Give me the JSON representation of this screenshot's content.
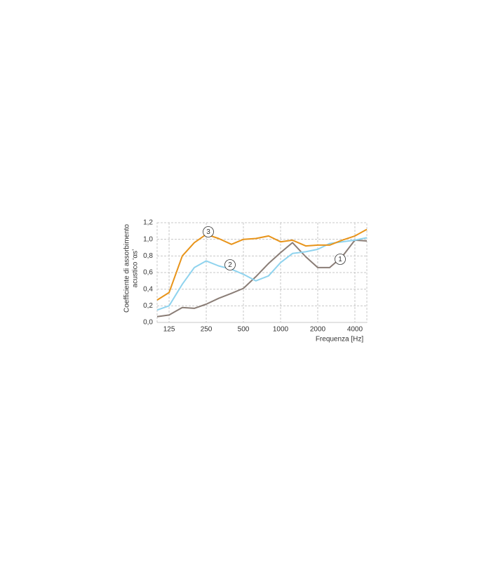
{
  "chart_data": {
    "type": "line",
    "ylabel": [
      "Coefficiente di assorbimento",
      "acustico ‘αs’"
    ],
    "xlabel": "Frequenza [Hz]",
    "x": [
      100,
      125,
      160,
      200,
      250,
      315,
      400,
      500,
      630,
      800,
      1000,
      1250,
      1600,
      2000,
      2500,
      3150,
      4000,
      5000
    ],
    "xlim": [
      100,
      5000
    ],
    "xlog": true,
    "xticks": [
      125,
      250,
      500,
      1000,
      2000,
      4000
    ],
    "ylim": [
      0,
      1.2
    ],
    "yticks": [
      {
        "value": 0,
        "label": "0,0"
      },
      {
        "value": 0.2,
        "label": "0,2"
      },
      {
        "value": 0.4,
        "label": "0,4"
      },
      {
        "value": 0.6,
        "label": "0,6"
      },
      {
        "value": 0.8,
        "label": "0,8"
      },
      {
        "value": 1.0,
        "label": "1,0"
      },
      {
        "value": 1.2,
        "label": "1,2"
      }
    ],
    "grid": true,
    "series": [
      {
        "name": "1",
        "color": "#8a7d76",
        "values": [
          0.07,
          0.09,
          0.18,
          0.17,
          0.22,
          0.29,
          0.35,
          0.41,
          0.55,
          0.71,
          0.84,
          0.96,
          0.79,
          0.66,
          0.66,
          0.79,
          0.99,
          0.98
        ]
      },
      {
        "name": "2",
        "color": "#8fd3ee",
        "values": [
          0.15,
          0.2,
          0.46,
          0.66,
          0.74,
          0.68,
          0.64,
          0.58,
          0.5,
          0.56,
          0.72,
          0.83,
          0.85,
          0.88,
          0.95,
          0.97,
          0.99,
          1.02
        ]
      },
      {
        "name": "3",
        "color": "#e8941a",
        "values": [
          0.27,
          0.36,
          0.8,
          0.96,
          1.06,
          1.01,
          0.94,
          1.0,
          1.01,
          1.04,
          0.97,
          0.99,
          0.92,
          0.93,
          0.93,
          0.99,
          1.04,
          1.12
        ]
      }
    ]
  }
}
